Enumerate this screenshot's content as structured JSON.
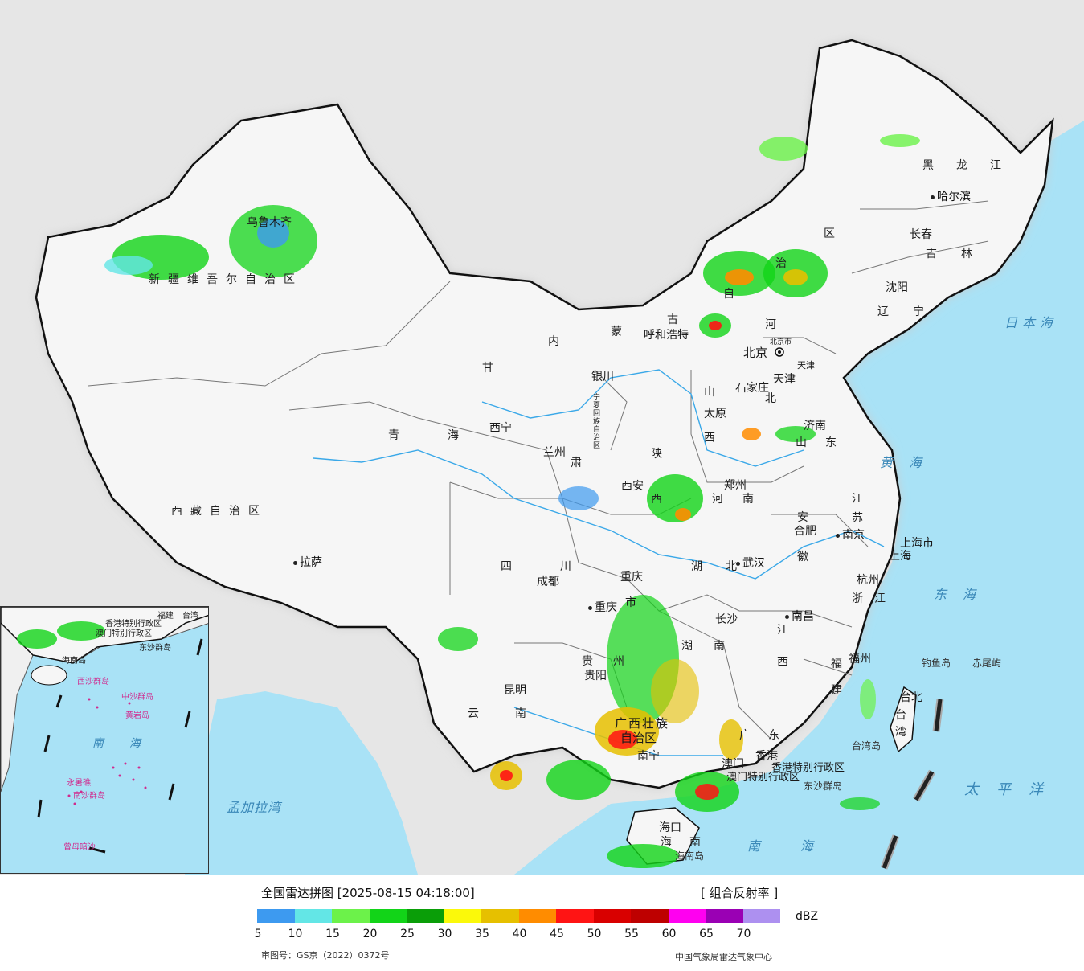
{
  "legend": {
    "title": "全国雷达拼图 [2025-08-15 04:18:00]",
    "product": "[ 组合反射率 ]",
    "unit": "dBZ",
    "approval": "审图号：GS京（2022）0372号",
    "source": "中国气象局雷达气象中心",
    "colors": [
      "#3d9af0",
      "#63e6e6",
      "#6cf24a",
      "#12d418",
      "#0a9e08",
      "#fbf90a",
      "#e6c000",
      "#ff8c00",
      "#ff1414",
      "#d90000",
      "#be0000",
      "#ff00f0",
      "#9a00b4",
      "#ad90f0"
    ],
    "ticks": [
      "5",
      "10",
      "15",
      "20",
      "25",
      "30",
      "35",
      "40",
      "45",
      "50",
      "55",
      "60",
      "65",
      "70"
    ]
  },
  "labels": {
    "provinces": [
      "新疆维吾尔自治区",
      "西藏自治区",
      "青海",
      "甘",
      "肃",
      "内",
      "蒙",
      "古",
      "自",
      "治",
      "区",
      "四",
      "川",
      "云",
      "南",
      "贵",
      "州",
      "陕",
      "西",
      "山",
      "西",
      "河",
      "北",
      "河",
      "南",
      "湖",
      "北",
      "湖",
      "南",
      "江",
      "西",
      "安",
      "徽",
      "江",
      "苏",
      "浙",
      "江",
      "福",
      "建",
      "广",
      "东",
      "广西壮族",
      "自治区",
      "山",
      "东",
      "黑",
      "龙",
      "江",
      "吉",
      "林",
      "辽",
      "宁",
      "重庆",
      "市",
      "宁夏回族自治区",
      "海",
      "南",
      "台",
      "湾",
      "上海市",
      "北京市",
      "天津",
      "澳门特别行政区",
      "香港特别行政区"
    ],
    "cities": [
      "乌鲁木齐",
      "拉萨",
      "西宁",
      "兰州",
      "银川",
      "成都",
      "重庆",
      "昆明",
      "贵阳",
      "南宁",
      "海口",
      "长沙",
      "武汉",
      "南昌",
      "福州",
      "台北",
      "杭州",
      "南京",
      "合肥",
      "郑州",
      "西安",
      "太原",
      "石家庄",
      "济南",
      "北京",
      "天津",
      "呼和浩特",
      "沈阳",
      "长春",
      "哈尔滨",
      "香港",
      "澳门",
      "上海"
    ],
    "seas": [
      "日本海",
      "黄海",
      "东海",
      "太平洋",
      "南海",
      "孟加拉湾"
    ],
    "islands": [
      "钓鱼岛",
      "赤尾屿",
      "台湾岛",
      "东沙群岛",
      "海南岛"
    ],
    "inset": [
      "南",
      "海",
      "中沙群岛",
      "黄岩岛",
      "永暑礁",
      "南沙群岛",
      "曾母暗沙",
      "西沙群岛",
      "海南岛",
      "香港特别行政区",
      "澳门特别行政区",
      "台湾",
      "东沙群岛",
      "福建"
    ]
  }
}
